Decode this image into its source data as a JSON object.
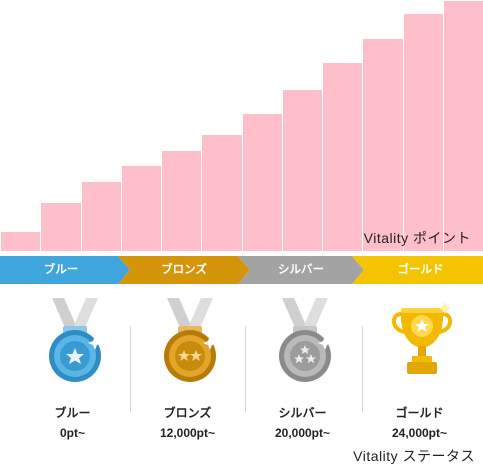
{
  "points_chart": {
    "label": "Vitality ポイント",
    "relative_heights": [
      0.083,
      0.197,
      0.283,
      0.345,
      0.403,
      0.467,
      0.553,
      0.648,
      0.752,
      0.849,
      0.947,
      1.0
    ]
  },
  "tiers": [
    {
      "name": "ブルー",
      "points": "0pt~",
      "color": "#3ea6dc"
    },
    {
      "name": "ブロンズ",
      "points": "12,000pt~",
      "color": "#d4950b"
    },
    {
      "name": "シルバー",
      "points": "20,000pt~",
      "color": "#a3a3a3"
    },
    {
      "name": "ゴールド",
      "points": "24,000pt~",
      "color": "#f5c400"
    }
  ],
  "status_label": "Vitality ステータス",
  "colors": {
    "bar": "#ffbfca"
  },
  "icons": [
    "blue-medal-icon",
    "bronze-medal-icon",
    "silver-medal-icon",
    "gold-trophy-icon"
  ]
}
